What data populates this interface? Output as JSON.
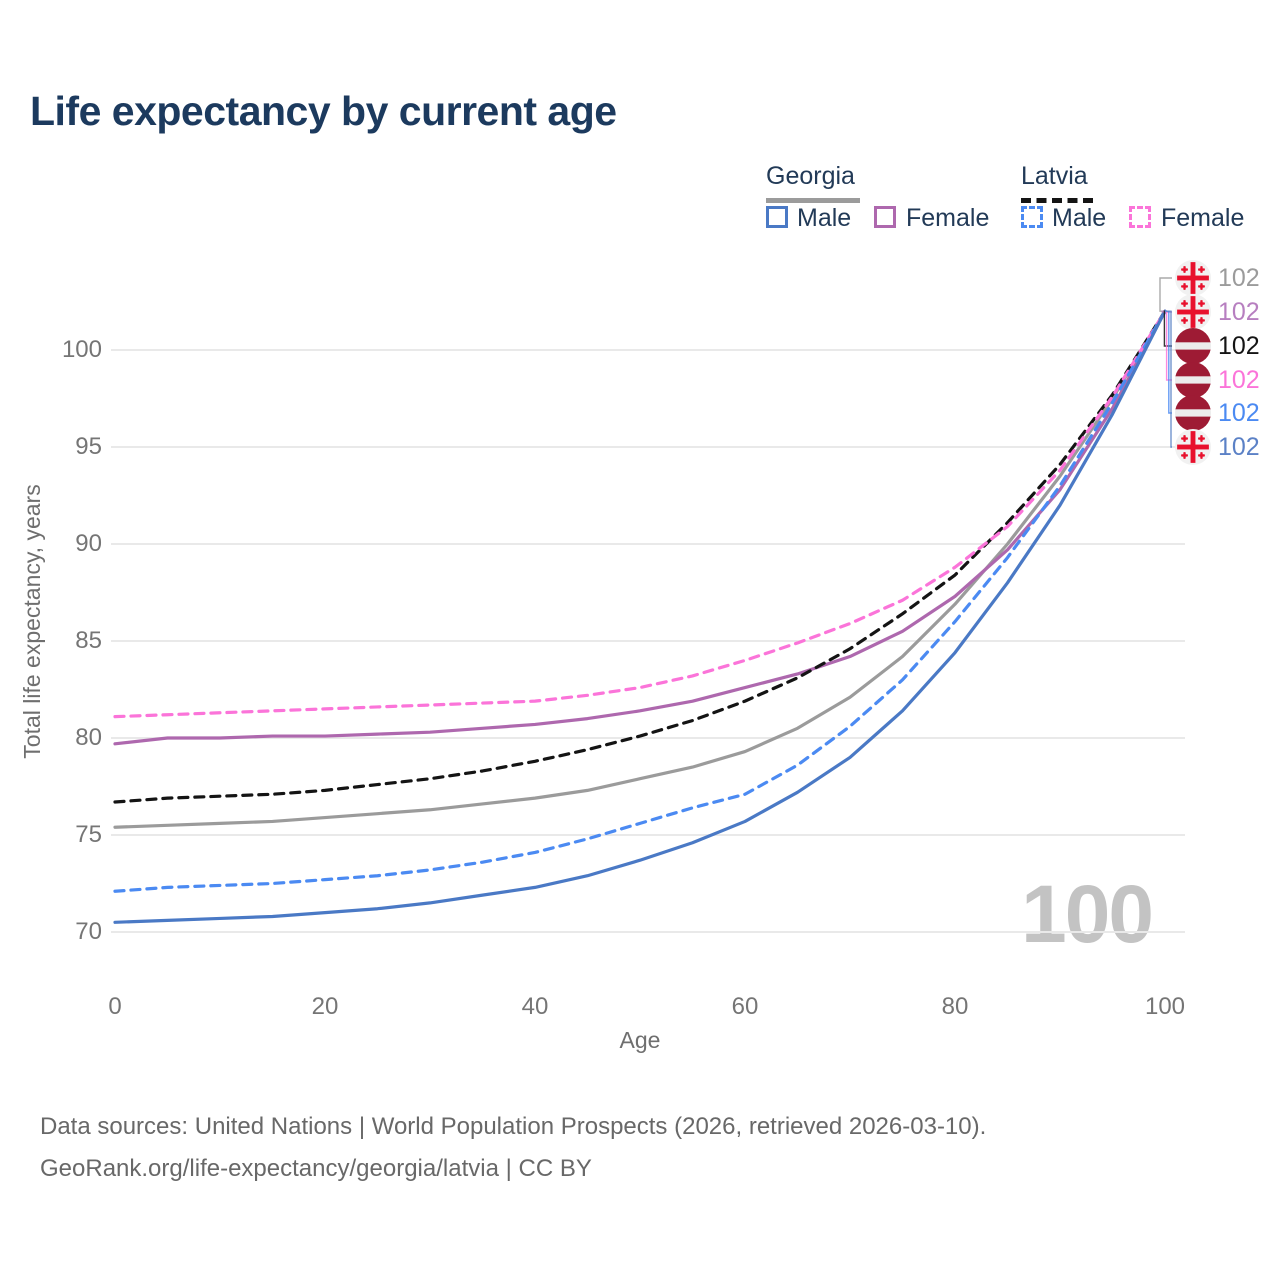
{
  "title": "Life expectancy by current age",
  "watermark": "100",
  "footer": {
    "line1": "Data sources: United Nations | World Population Prospects (2026, retrieved 2026-03-10).",
    "line2": "GeoRank.org/life-expectancy/georgia/latvia | CC BY"
  },
  "legend": {
    "georgia": {
      "header": "Georgia",
      "male_label": "Male",
      "female_label": "Female",
      "header_swatch_color": "#9b9b9b",
      "male_swatch_color": "#4a79c5",
      "female_swatch_color": "#ae68ae",
      "style": "solid"
    },
    "latvia": {
      "header": "Latvia",
      "male_label": "Male",
      "female_label": "Female",
      "header_swatch_color": "#141414",
      "male_swatch_color": "#4b8af2",
      "female_swatch_color": "#fb74d9",
      "style": "dashed"
    }
  },
  "chart_data": {
    "type": "line",
    "title": "Life expectancy by current age",
    "xlabel": "Age",
    "ylabel": "Total life expectancy, years",
    "xlim": [
      0,
      100
    ],
    "ylim": [
      70,
      100
    ],
    "x_ticks": [
      0,
      20,
      40,
      60,
      80,
      100
    ],
    "y_ticks": [
      70,
      75,
      80,
      85,
      90,
      95,
      100
    ],
    "grid": "horizontal",
    "legend_position": "top-right",
    "x": [
      0,
      5,
      10,
      15,
      20,
      25,
      30,
      35,
      40,
      45,
      50,
      55,
      60,
      65,
      70,
      75,
      80,
      85,
      90,
      95,
      100
    ],
    "series": [
      {
        "name": "Georgia",
        "key": "georgia-total",
        "country": "Georgia",
        "sex": "all",
        "color": "#9b9b9b",
        "dash": false,
        "values": [
          75.4,
          75.5,
          75.6,
          75.7,
          75.9,
          76.1,
          76.3,
          76.6,
          76.9,
          77.3,
          77.9,
          78.5,
          79.3,
          80.5,
          82.1,
          84.2,
          86.9,
          90.0,
          93.5,
          97.5,
          102.0
        ]
      },
      {
        "name": "Georgia Female",
        "key": "georgia-female",
        "country": "Georgia",
        "sex": "female",
        "color": "#ae68ae",
        "dash": false,
        "values": [
          79.7,
          80.0,
          80.0,
          80.1,
          80.1,
          80.2,
          80.3,
          80.5,
          80.7,
          81.0,
          81.4,
          81.9,
          82.6,
          83.3,
          84.2,
          85.5,
          87.3,
          89.7,
          92.8,
          97.0,
          102.0
        ]
      },
      {
        "name": "Latvia",
        "key": "latvia-total",
        "country": "Latvia",
        "sex": "all",
        "color": "#141414",
        "dash": true,
        "values": [
          76.7,
          76.9,
          77.0,
          77.1,
          77.3,
          77.6,
          77.9,
          78.3,
          78.8,
          79.4,
          80.1,
          80.9,
          81.9,
          83.1,
          84.6,
          86.4,
          88.4,
          91.1,
          94.1,
          97.7,
          102.0
        ]
      },
      {
        "name": "Latvia Female",
        "key": "latvia-female",
        "country": "Latvia",
        "sex": "female",
        "color": "#fb74d9",
        "dash": true,
        "values": [
          81.1,
          81.2,
          81.3,
          81.4,
          81.5,
          81.6,
          81.7,
          81.8,
          81.9,
          82.2,
          82.6,
          83.2,
          84.0,
          84.9,
          85.9,
          87.1,
          88.8,
          90.9,
          93.8,
          97.6,
          102.0
        ]
      },
      {
        "name": "Latvia Male",
        "key": "latvia-male",
        "country": "Latvia",
        "sex": "male",
        "color": "#4b8af2",
        "dash": true,
        "values": [
          72.1,
          72.3,
          72.4,
          72.5,
          72.7,
          72.9,
          73.2,
          73.6,
          74.1,
          74.8,
          75.6,
          76.4,
          77.1,
          78.6,
          80.6,
          83.0,
          86.0,
          89.3,
          93.0,
          97.3,
          102.0
        ]
      },
      {
        "name": "Georgia Male",
        "key": "georgia-male",
        "country": "Georgia",
        "sex": "male",
        "color": "#4a79c5",
        "dash": false,
        "values": [
          70.5,
          70.6,
          70.7,
          70.8,
          71.0,
          71.2,
          71.5,
          71.9,
          72.3,
          72.9,
          73.7,
          74.6,
          75.7,
          77.2,
          79.0,
          81.4,
          84.4,
          88.0,
          92.0,
          96.7,
          102.0
        ]
      }
    ],
    "end_labels": [
      {
        "series": "georgia-total",
        "flag": "georgia",
        "value": "102",
        "color": "#9b9b9b",
        "row_y": 278
      },
      {
        "series": "georgia-female",
        "flag": "georgia",
        "value": "102",
        "color": "#b77fc0",
        "row_y": 312
      },
      {
        "series": "latvia-total",
        "flag": "latvia",
        "value": "102",
        "color": "#141414",
        "row_y": 346
      },
      {
        "series": "latvia-female",
        "flag": "latvia",
        "value": "102",
        "color": "#fb74d9",
        "row_y": 380
      },
      {
        "series": "latvia-male",
        "flag": "latvia",
        "value": "102",
        "color": "#4b8af2",
        "row_y": 413
      },
      {
        "series": "georgia-male",
        "flag": "georgia",
        "value": "102",
        "color": "#5b81c6",
        "row_y": 447
      }
    ]
  },
  "axes": {
    "x_title": "Age",
    "y_title": "Total life expectancy, years"
  }
}
